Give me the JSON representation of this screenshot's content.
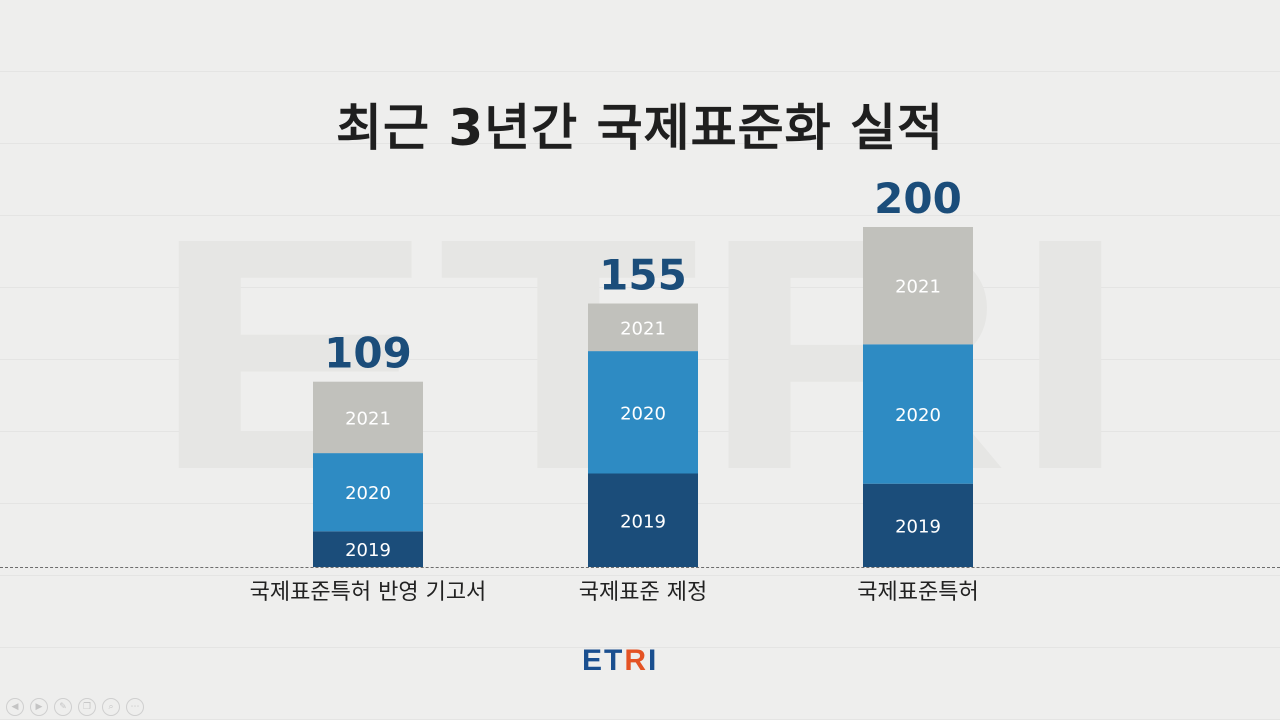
{
  "slide": {
    "title": "최근 3년간 국제표준화 실적",
    "watermark_text": "ETRI",
    "logo": {
      "text": "ETRI",
      "colors": {
        "primary": "#1a4f8f",
        "accent": "#e45324"
      }
    },
    "controls": [
      "prev-icon",
      "play-icon",
      "pen-icon",
      "copy-icon",
      "zoom-icon",
      "more-icon"
    ]
  },
  "chart_data": {
    "type": "bar",
    "stacked": true,
    "title": "최근 3년간 국제표준화 실적",
    "categories": [
      "국제표준특허 반영 기고서",
      "국제표준 제정",
      "국제표준특허"
    ],
    "totals": [
      109,
      155,
      200
    ],
    "series": [
      {
        "name": "2019",
        "values": [
          21,
          55,
          49
        ],
        "color": "#1b4d7a"
      },
      {
        "name": "2020",
        "values": [
          46,
          72,
          82
        ],
        "color": "#2e8bc3"
      },
      {
        "name": "2021",
        "values": [
          42,
          28,
          69
        ],
        "color": "#c1c1bc"
      }
    ],
    "ylim": [
      0,
      200
    ],
    "grid": false,
    "colors": {
      "total_label": "#1b4d7a",
      "segment_label": "#ffffff",
      "category_label": "#222222"
    }
  }
}
